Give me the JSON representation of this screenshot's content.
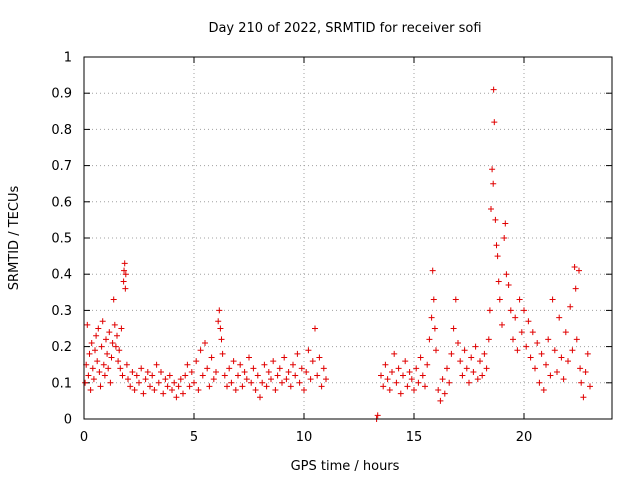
{
  "chart_data": {
    "type": "scatter",
    "title": "Day 210 of 2022, SRMTID for receiver sofi",
    "xlabel": "GPS time / hours",
    "ylabel": "SRMTID / TECUs",
    "xlim": [
      0,
      24
    ],
    "ylim": [
      0,
      1
    ],
    "xticks": [
      0,
      5,
      10,
      15,
      20
    ],
    "xtick_labels": [
      "0",
      "5",
      "10",
      "15",
      "20"
    ],
    "yticks": [
      0,
      0.1,
      0.2,
      0.3,
      0.4,
      0.5,
      0.6,
      0.7,
      0.8,
      0.9,
      1
    ],
    "ytick_labels": [
      "0",
      "0.1",
      "0.2",
      "0.3",
      "0.4",
      "0.5",
      "0.6",
      "0.7",
      "0.8",
      "0.9",
      "1"
    ],
    "grid": true,
    "marker": "+",
    "color": "#e00000",
    "series": [
      {
        "name": "SRMTID",
        "points": [
          [
            0.05,
            0.1
          ],
          [
            0.1,
            0.15
          ],
          [
            0.15,
            0.26
          ],
          [
            0.2,
            0.12
          ],
          [
            0.25,
            0.18
          ],
          [
            0.3,
            0.08
          ],
          [
            0.35,
            0.21
          ],
          [
            0.4,
            0.14
          ],
          [
            0.45,
            0.11
          ],
          [
            0.5,
            0.19
          ],
          [
            0.55,
            0.23
          ],
          [
            0.6,
            0.16
          ],
          [
            0.65,
            0.25
          ],
          [
            0.7,
            0.13
          ],
          [
            0.75,
            0.09
          ],
          [
            0.8,
            0.2
          ],
          [
            0.85,
            0.27
          ],
          [
            0.9,
            0.15
          ],
          [
            0.95,
            0.12
          ],
          [
            1.0,
            0.22
          ],
          [
            1.05,
            0.18
          ],
          [
            1.1,
            0.14
          ],
          [
            1.15,
            0.24
          ],
          [
            1.2,
            0.1
          ],
          [
            1.25,
            0.17
          ],
          [
            1.3,
            0.21
          ],
          [
            1.35,
            0.33
          ],
          [
            1.4,
            0.26
          ],
          [
            1.45,
            0.2
          ],
          [
            1.5,
            0.23
          ],
          [
            1.55,
            0.16
          ],
          [
            1.6,
            0.19
          ],
          [
            1.65,
            0.14
          ],
          [
            1.7,
            0.25
          ],
          [
            1.75,
            0.12
          ],
          [
            1.8,
            0.38
          ],
          [
            1.82,
            0.41
          ],
          [
            1.85,
            0.43
          ],
          [
            1.88,
            0.36
          ],
          [
            1.9,
            0.4
          ],
          [
            1.95,
            0.15
          ],
          [
            2.0,
            0.11
          ],
          [
            2.1,
            0.09
          ],
          [
            2.2,
            0.13
          ],
          [
            2.3,
            0.08
          ],
          [
            2.4,
            0.12
          ],
          [
            2.5,
            0.1
          ],
          [
            2.6,
            0.14
          ],
          [
            2.7,
            0.07
          ],
          [
            2.8,
            0.11
          ],
          [
            2.9,
            0.13
          ],
          [
            3.0,
            0.09
          ],
          [
            3.1,
            0.12
          ],
          [
            3.2,
            0.08
          ],
          [
            3.3,
            0.15
          ],
          [
            3.4,
            0.1
          ],
          [
            3.5,
            0.13
          ],
          [
            3.6,
            0.07
          ],
          [
            3.7,
            0.11
          ],
          [
            3.8,
            0.09
          ],
          [
            3.9,
            0.12
          ],
          [
            4.0,
            0.08
          ],
          [
            4.1,
            0.1
          ],
          [
            4.2,
            0.06
          ],
          [
            4.3,
            0.09
          ],
          [
            4.4,
            0.11
          ],
          [
            4.5,
            0.07
          ],
          [
            4.6,
            0.12
          ],
          [
            4.7,
            0.15
          ],
          [
            4.8,
            0.09
          ],
          [
            4.9,
            0.13
          ],
          [
            5.0,
            0.1
          ],
          [
            5.1,
            0.16
          ],
          [
            5.2,
            0.08
          ],
          [
            5.3,
            0.19
          ],
          [
            5.4,
            0.12
          ],
          [
            5.5,
            0.21
          ],
          [
            5.6,
            0.14
          ],
          [
            5.7,
            0.09
          ],
          [
            5.8,
            0.17
          ],
          [
            5.9,
            0.11
          ],
          [
            6.0,
            0.13
          ],
          [
            6.1,
            0.27
          ],
          [
            6.15,
            0.3
          ],
          [
            6.2,
            0.25
          ],
          [
            6.25,
            0.22
          ],
          [
            6.3,
            0.18
          ],
          [
            6.4,
            0.12
          ],
          [
            6.5,
            0.09
          ],
          [
            6.6,
            0.14
          ],
          [
            6.7,
            0.1
          ],
          [
            6.8,
            0.16
          ],
          [
            6.9,
            0.08
          ],
          [
            7.0,
            0.12
          ],
          [
            7.1,
            0.15
          ],
          [
            7.2,
            0.09
          ],
          [
            7.3,
            0.13
          ],
          [
            7.4,
            0.11
          ],
          [
            7.5,
            0.17
          ],
          [
            7.6,
            0.1
          ],
          [
            7.7,
            0.14
          ],
          [
            7.8,
            0.08
          ],
          [
            7.9,
            0.12
          ],
          [
            8.0,
            0.06
          ],
          [
            8.1,
            0.1
          ],
          [
            8.2,
            0.15
          ],
          [
            8.3,
            0.09
          ],
          [
            8.4,
            0.13
          ],
          [
            8.5,
            0.11
          ],
          [
            8.6,
            0.16
          ],
          [
            8.7,
            0.08
          ],
          [
            8.8,
            0.12
          ],
          [
            8.9,
            0.14
          ],
          [
            9.0,
            0.1
          ],
          [
            9.1,
            0.17
          ],
          [
            9.2,
            0.11
          ],
          [
            9.3,
            0.13
          ],
          [
            9.4,
            0.09
          ],
          [
            9.5,
            0.15
          ],
          [
            9.6,
            0.12
          ],
          [
            9.7,
            0.18
          ],
          [
            9.8,
            0.1
          ],
          [
            9.9,
            0.14
          ],
          [
            10.0,
            0.08
          ],
          [
            10.1,
            0.13
          ],
          [
            10.2,
            0.19
          ],
          [
            10.3,
            0.11
          ],
          [
            10.4,
            0.16
          ],
          [
            10.5,
            0.25
          ],
          [
            10.6,
            0.12
          ],
          [
            10.7,
            0.17
          ],
          [
            10.8,
            0.09
          ],
          [
            10.9,
            0.14
          ],
          [
            11.0,
            0.11
          ],
          [
            13.3,
            0.0
          ],
          [
            13.35,
            0.01
          ],
          [
            13.5,
            0.12
          ],
          [
            13.6,
            0.09
          ],
          [
            13.7,
            0.15
          ],
          [
            13.8,
            0.11
          ],
          [
            13.9,
            0.08
          ],
          [
            14.0,
            0.13
          ],
          [
            14.1,
            0.18
          ],
          [
            14.2,
            0.1
          ],
          [
            14.3,
            0.14
          ],
          [
            14.4,
            0.07
          ],
          [
            14.5,
            0.12
          ],
          [
            14.6,
            0.16
          ],
          [
            14.7,
            0.09
          ],
          [
            14.8,
            0.13
          ],
          [
            14.9,
            0.11
          ],
          [
            15.0,
            0.08
          ],
          [
            15.1,
            0.14
          ],
          [
            15.2,
            0.1
          ],
          [
            15.3,
            0.17
          ],
          [
            15.4,
            0.12
          ],
          [
            15.5,
            0.09
          ],
          [
            15.6,
            0.15
          ],
          [
            15.7,
            0.22
          ],
          [
            15.8,
            0.28
          ],
          [
            15.85,
            0.41
          ],
          [
            15.9,
            0.33
          ],
          [
            15.95,
            0.25
          ],
          [
            16.0,
            0.19
          ],
          [
            16.1,
            0.08
          ],
          [
            16.2,
            0.05
          ],
          [
            16.3,
            0.11
          ],
          [
            16.4,
            0.07
          ],
          [
            16.5,
            0.14
          ],
          [
            16.6,
            0.1
          ],
          [
            16.7,
            0.18
          ],
          [
            16.8,
            0.25
          ],
          [
            16.9,
            0.33
          ],
          [
            17.0,
            0.21
          ],
          [
            17.1,
            0.16
          ],
          [
            17.2,
            0.12
          ],
          [
            17.3,
            0.19
          ],
          [
            17.4,
            0.14
          ],
          [
            17.5,
            0.1
          ],
          [
            17.6,
            0.17
          ],
          [
            17.7,
            0.13
          ],
          [
            17.8,
            0.2
          ],
          [
            17.9,
            0.11
          ],
          [
            18.0,
            0.16
          ],
          [
            18.1,
            0.12
          ],
          [
            18.2,
            0.18
          ],
          [
            18.3,
            0.14
          ],
          [
            18.4,
            0.22
          ],
          [
            18.45,
            0.3
          ],
          [
            18.5,
            0.58
          ],
          [
            18.55,
            0.69
          ],
          [
            18.6,
            0.65
          ],
          [
            18.62,
            0.91
          ],
          [
            18.65,
            0.82
          ],
          [
            18.7,
            0.55
          ],
          [
            18.75,
            0.48
          ],
          [
            18.8,
            0.45
          ],
          [
            18.85,
            0.38
          ],
          [
            18.9,
            0.33
          ],
          [
            19.0,
            0.26
          ],
          [
            19.1,
            0.5
          ],
          [
            19.15,
            0.54
          ],
          [
            19.2,
            0.4
          ],
          [
            19.3,
            0.37
          ],
          [
            19.4,
            0.3
          ],
          [
            19.5,
            0.22
          ],
          [
            19.6,
            0.28
          ],
          [
            19.7,
            0.19
          ],
          [
            19.8,
            0.33
          ],
          [
            19.9,
            0.24
          ],
          [
            20.0,
            0.3
          ],
          [
            20.1,
            0.2
          ],
          [
            20.2,
            0.27
          ],
          [
            20.3,
            0.17
          ],
          [
            20.4,
            0.24
          ],
          [
            20.5,
            0.14
          ],
          [
            20.6,
            0.21
          ],
          [
            20.7,
            0.1
          ],
          [
            20.8,
            0.18
          ],
          [
            20.9,
            0.08
          ],
          [
            21.0,
            0.15
          ],
          [
            21.1,
            0.22
          ],
          [
            21.2,
            0.12
          ],
          [
            21.3,
            0.33
          ],
          [
            21.4,
            0.19
          ],
          [
            21.5,
            0.13
          ],
          [
            21.6,
            0.28
          ],
          [
            21.7,
            0.17
          ],
          [
            21.8,
            0.11
          ],
          [
            21.9,
            0.24
          ],
          [
            22.0,
            0.16
          ],
          [
            22.1,
            0.31
          ],
          [
            22.2,
            0.19
          ],
          [
            22.3,
            0.42
          ],
          [
            22.35,
            0.36
          ],
          [
            22.4,
            0.22
          ],
          [
            22.5,
            0.41
          ],
          [
            22.55,
            0.14
          ],
          [
            22.6,
            0.1
          ],
          [
            22.7,
            0.06
          ],
          [
            22.8,
            0.13
          ],
          [
            22.9,
            0.18
          ],
          [
            23.0,
            0.09
          ]
        ]
      }
    ]
  }
}
